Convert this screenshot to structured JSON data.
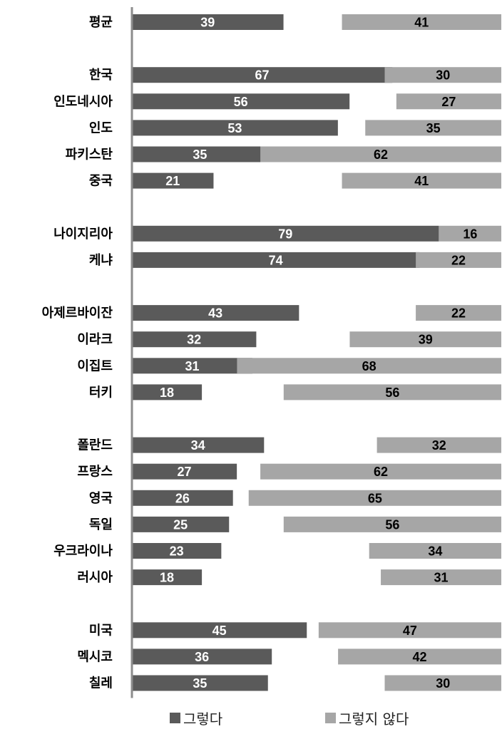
{
  "chart_data": {
    "type": "bar",
    "title": "",
    "xlabel": "",
    "ylabel": "",
    "categories": [
      "평균",
      "한국",
      "인도네시아",
      "인도",
      "파키스탄",
      "중국",
      "나이지리아",
      "케냐",
      "아제르바이잔",
      "이라크",
      "이집트",
      "터키",
      "폴란드",
      "프랑스",
      "영국",
      "독일",
      "우크라이나",
      "러시아",
      "미국",
      "멕시코",
      "칠레"
    ],
    "groups_after_index": [
      0,
      5,
      7,
      11,
      17
    ],
    "series": [
      {
        "name": "그렇다",
        "color": "#5a5a5a",
        "label_color": "#ffffff",
        "values": [
          39,
          67,
          56,
          53,
          35,
          21,
          79,
          74,
          43,
          32,
          31,
          18,
          34,
          27,
          26,
          25,
          23,
          18,
          45,
          36,
          35
        ]
      },
      {
        "name": "그렇지 않다",
        "color": "#a6a6a6",
        "label_color": "#000000",
        "values": [
          41,
          30,
          27,
          35,
          62,
          41,
          16,
          22,
          22,
          39,
          68,
          56,
          32,
          62,
          65,
          56,
          34,
          31,
          47,
          42,
          30
        ]
      }
    ],
    "legend_position": "bottom",
    "grid": false
  }
}
